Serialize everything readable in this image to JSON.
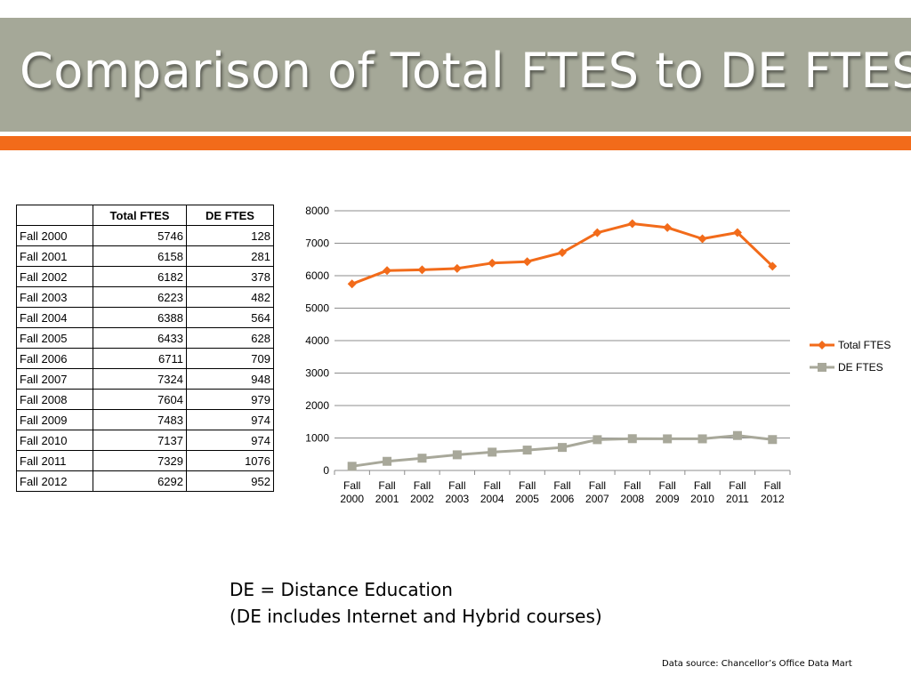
{
  "slide": {
    "title": "Comparison of Total FTES to DE FTES",
    "note_line1": "DE = Distance Education",
    "note_line2": "(DE includes Internet and Hybrid courses)",
    "source": "Data source: Chancellor’s Office Data Mart",
    "colors": {
      "title_band": "#a5a898",
      "accent_bar": "#f26b1a"
    }
  },
  "table": {
    "headers": [
      "",
      "Total FTES",
      "DE FTES"
    ],
    "rows": [
      [
        "Fall 2000",
        "5746",
        "128"
      ],
      [
        "Fall 2001",
        "6158",
        "281"
      ],
      [
        "Fall 2002",
        "6182",
        "378"
      ],
      [
        "Fall 2003",
        "6223",
        "482"
      ],
      [
        "Fall 2004",
        "6388",
        "564"
      ],
      [
        "Fall 2005",
        "6433",
        "628"
      ],
      [
        "Fall 2006",
        "6711",
        "709"
      ],
      [
        "Fall 2007",
        "7324",
        "948"
      ],
      [
        "Fall 2008",
        "7604",
        "979"
      ],
      [
        "Fall 2009",
        "7483",
        "974"
      ],
      [
        "Fall 2010",
        "7137",
        "974"
      ],
      [
        "Fall 2011",
        "7329",
        "1076"
      ],
      [
        "Fall 2012",
        "6292",
        "952"
      ]
    ]
  },
  "chart_data": {
    "type": "line",
    "categories": [
      [
        "Fall",
        "2000"
      ],
      [
        "Fall",
        "2001"
      ],
      [
        "Fall",
        "2002"
      ],
      [
        "Fall",
        "2003"
      ],
      [
        "Fall",
        "2004"
      ],
      [
        "Fall",
        "2005"
      ],
      [
        "Fall",
        "2006"
      ],
      [
        "Fall",
        "2007"
      ],
      [
        "Fall",
        "2008"
      ],
      [
        "Fall",
        "2009"
      ],
      [
        "Fall",
        "2010"
      ],
      [
        "Fall",
        "2011"
      ],
      [
        "Fall",
        "2012"
      ]
    ],
    "series": [
      {
        "name": "Total FTES",
        "color": "#f26b1a",
        "marker": "diamond",
        "values": [
          5746,
          6158,
          6182,
          6223,
          6388,
          6433,
          6711,
          7324,
          7604,
          7483,
          7137,
          7329,
          6292
        ]
      },
      {
        "name": "DE FTES",
        "color": "#a8a89a",
        "marker": "square",
        "values": [
          128,
          281,
          378,
          482,
          564,
          628,
          709,
          948,
          979,
          974,
          974,
          1076,
          952
        ]
      }
    ],
    "ylim": [
      0,
      8000
    ],
    "yticks": [
      0,
      1000,
      2000,
      3000,
      4000,
      5000,
      6000,
      7000,
      8000
    ],
    "grid": true,
    "legend": "right"
  }
}
